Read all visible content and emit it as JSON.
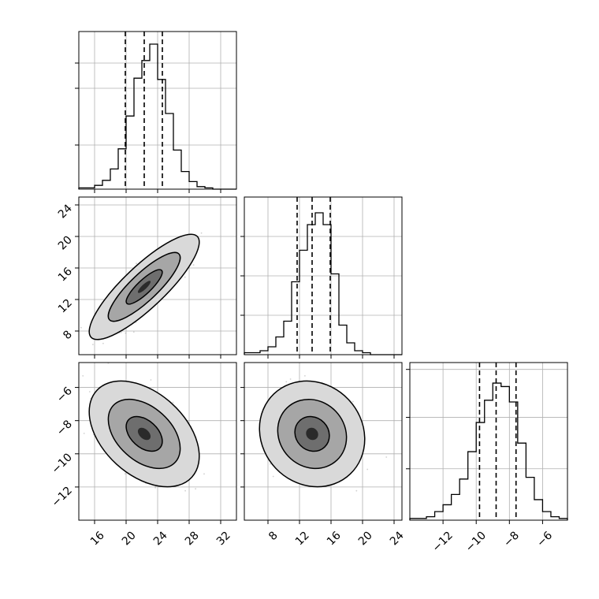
{
  "chart_data": {
    "type": "corner",
    "params": [
      {
        "range": [
          14,
          34
        ],
        "ticks": [
          16,
          20,
          24,
          28,
          32
        ],
        "tick_labels": [
          "16",
          "20",
          "24",
          "28",
          "32"
        ]
      },
      {
        "range": [
          5,
          25
        ],
        "ticks": [
          8,
          12,
          16,
          20,
          24
        ],
        "tick_labels": [
          "8",
          "12",
          "16",
          "20",
          "24"
        ]
      },
      {
        "range": [
          -14,
          -4.5
        ],
        "ticks": [
          -12,
          -10,
          -8,
          -6
        ],
        "tick_labels": [
          "−12",
          "−10",
          "−8",
          "−6"
        ]
      }
    ],
    "histograms": [
      {
        "param": 0,
        "bin_edges": [
          14,
          15,
          16,
          17,
          18,
          19,
          20,
          21,
          22,
          23,
          24,
          25,
          26,
          27,
          28,
          29,
          30,
          31,
          32,
          33,
          34
        ],
        "counts": [
          1,
          1,
          3,
          7,
          16,
          32,
          58,
          88,
          102,
          115,
          87,
          60,
          31,
          14,
          6,
          2,
          1,
          0,
          0,
          0
        ],
        "ymax": 125,
        "yticks": [
          35,
          80,
          100
        ],
        "quantiles": [
          19.9,
          22.3,
          24.6
        ]
      },
      {
        "param": 1,
        "bin_edges": [
          5,
          6,
          7,
          8,
          9,
          10,
          11,
          12,
          13,
          14,
          15,
          16,
          17,
          18,
          19,
          20,
          21,
          22,
          23,
          24,
          25
        ],
        "counts": [
          1,
          1,
          2,
          4,
          9,
          17,
          37,
          53,
          66,
          72,
          66,
          41,
          15,
          6,
          2,
          1,
          0,
          0,
          0,
          0
        ],
        "ymax": 80,
        "yticks": [
          20,
          40,
          60
        ],
        "quantiles": [
          11.7,
          13.6,
          15.9
        ]
      },
      {
        "param": 2,
        "bin_edges": [
          -14,
          -13.5,
          -13,
          -12.5,
          -12,
          -11.5,
          -11,
          -10.5,
          -10,
          -9.5,
          -9,
          -8.5,
          -8,
          -7.5,
          -7,
          -6.5,
          -6,
          -5.5,
          -5,
          -4.5
        ],
        "counts": [
          1,
          1,
          2,
          5,
          9,
          15,
          24,
          40,
          57,
          70,
          80,
          78,
          69,
          45,
          25,
          12,
          5,
          2,
          1
        ],
        "ymax": 92,
        "yticks": [
          30,
          60,
          88
        ],
        "quantiles": [
          -9.8,
          -8.8,
          -7.6
        ]
      }
    ],
    "pairs": [
      {
        "x_param": 0,
        "y_param": 1,
        "center": [
          22.3,
          13.6
        ],
        "sd": [
          2.3,
          2.2
        ],
        "rho": 0.85
      },
      {
        "x_param": 0,
        "y_param": 2,
        "center": [
          22.3,
          -8.8
        ],
        "sd": [
          2.3,
          1.05
        ],
        "rho": -0.42
      },
      {
        "x_param": 1,
        "y_param": 2,
        "center": [
          13.6,
          -8.8
        ],
        "sd": [
          2.2,
          1.05
        ],
        "rho": -0.1
      }
    ],
    "contour_levels": [
      0.39,
      0.86,
      0.99
    ],
    "grid": true,
    "quantile_style": "dashed"
  }
}
